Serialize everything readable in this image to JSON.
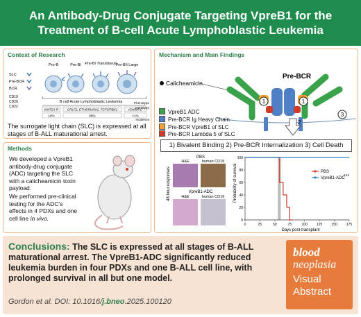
{
  "title_line1": "An Antibody-Drug Conjugate Targeting VpreB1 for the",
  "title_line2": "Treatment of B-cell Acute Lymphoblastic Leukemia",
  "context": {
    "title": "Context of Research",
    "stages": [
      "Pro-B",
      "Pre-BI",
      "Pre-BI Transitional",
      "Pre-BII Large"
    ],
    "markers_top": [
      "SLC",
      "Pre-BCR",
      "BCR"
    ],
    "markers_bottom": [
      "CD19",
      "CD20",
      "CD22"
    ],
    "leukemia_label": "B cell Acute Lymphoblastic Leukemia",
    "genotypes": [
      "KMT2A-R",
      "CRLF2, ETV6/RUNX1, TCF3/PBX1",
      "IGH/MYC"
    ],
    "incidence": [
      "10%",
      "80%",
      "<1%"
    ],
    "row_labels": [
      "Phenotype",
      "Genotype",
      "Incidence"
    ],
    "text": "The surrogate light chain (SLC) is expressed at all stages of B-ALL maturational arrest."
  },
  "methods": {
    "title": "Methods",
    "text1": "We developed a VpreB1 antibody-drug conjugate (ADC) targeting the SLC with a calicheamicin toxin payload.",
    "text2_a": "We performed pre-clinical testing for the ADC's effects in 4 PDXs and one cell line ",
    "text2_b": "in vivo."
  },
  "mechanism": {
    "title": "Mechanism and Main Findings",
    "calicheamicin": "Calicheamicin",
    "prebcr": "Pre-BCR",
    "numbers": [
      "1",
      "1",
      "2",
      "3"
    ],
    "legend": [
      {
        "label": "VpreB1 ADC",
        "color": "#3aa24a"
      },
      {
        "label": "Pre-BCR Ig Heavy Chain",
        "color": "#4f7fc4"
      },
      {
        "label": "Pre-BCR VpreB1 of SLC",
        "color": "#f0a030"
      },
      {
        "label": "Pre-BCR Lambda 5 of SLC",
        "color": "#d03a2a"
      }
    ],
    "steps": "1) Bivalent Binding   2) Pre-BCR Internalization 3) Cell Death",
    "histology": {
      "pbs": "PBS",
      "adc": "VpreB1-ADC",
      "he": "H&E",
      "cd19": "human CD19",
      "side": "48 hour responses"
    }
  },
  "chart_data": {
    "type": "line",
    "xlabel": "Days post-transplant",
    "ylabel": "Probability of survival",
    "xlim": [
      0,
      175
    ],
    "ylim": [
      0,
      100
    ],
    "xticks": [
      0,
      25,
      50,
      75,
      100,
      125,
      150,
      175
    ],
    "yticks": [
      0,
      20,
      40,
      60,
      80,
      100
    ],
    "significance": "***",
    "shaded_region": [
      55,
      60
    ],
    "series": [
      {
        "name": "PBS",
        "color": "#d03a2a",
        "x": [
          0,
          58,
          58,
          64,
          64,
          70,
          70,
          75,
          75,
          80
        ],
        "y": [
          100,
          100,
          60,
          60,
          40,
          40,
          20,
          20,
          0,
          0
        ]
      },
      {
        "name": "VpreB1-ADC",
        "color": "#2f7fc4",
        "x": [
          0,
          175
        ],
        "y": [
          100,
          100
        ]
      }
    ]
  },
  "conclusions": {
    "lead": "Conclusions:",
    "text": " The SLC is expressed at all stages of B-ALL maturational arrest. The VpreB1-ADC significantly reduced leukemia burden in four PDXs and one B-ALL cell line, with prolonged survival in all but one model.",
    "citation_a": "Gordon et al. DOI: 10.1016/",
    "citation_b": "j.bneo",
    "citation_c": ".2025.100120"
  },
  "badge": {
    "line1": "blood",
    "line2": "neoplasia",
    "line3": "Visual",
    "line4": "Abstract"
  },
  "colors": {
    "banner": "#1e8c4c",
    "accent": "#2b7f49",
    "panel_border": "#f0b88a",
    "conclusion_bg": "#f7e3d3",
    "badge": "#e77b3c"
  }
}
